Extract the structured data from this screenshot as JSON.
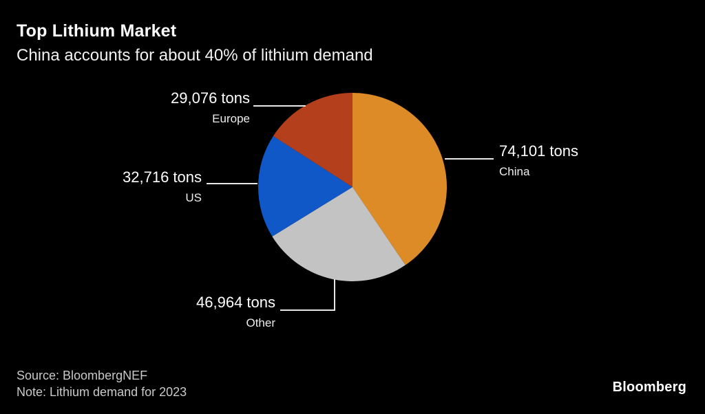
{
  "header": {
    "title": "Top Lithium Market",
    "subtitle": "China accounts for about 40% of lithium demand"
  },
  "footer": {
    "source": "Source: BloombergNEF",
    "note": "Note: Lithium demand for 2023",
    "brand": "Bloomberg"
  },
  "colors": {
    "background": "#000000",
    "text": "#ffffff",
    "muted_text": "#c9c9c9",
    "leader_line": "#e8e8e8"
  },
  "chart_data": {
    "type": "pie",
    "title": "Top Lithium Market",
    "subtitle": "China accounts for about 40% of lithium demand",
    "units": "tons",
    "direction": "clockwise",
    "start_angle_deg": 0,
    "legend_position": "none",
    "slices": [
      {
        "label": "China",
        "value": 74101,
        "value_label": "74,101 tons",
        "color": "#DD8B27"
      },
      {
        "label": "Other",
        "value": 46964,
        "value_label": "46,964 tons",
        "color": "#C3C3C3"
      },
      {
        "label": "US",
        "value": 32716,
        "value_label": "32,716 tons",
        "color": "#1057C8"
      },
      {
        "label": "Europe",
        "value": 29076,
        "value_label": "29,076 tons",
        "color": "#B33F1D"
      }
    ]
  }
}
